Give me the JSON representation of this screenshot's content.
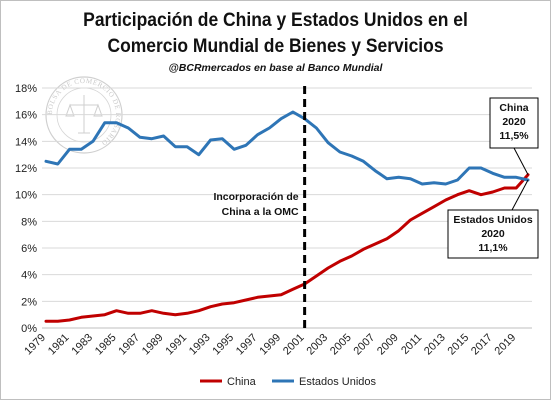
{
  "chart_data": {
    "type": "line",
    "title_lines": [
      "Participación de China y Estados Unidos en el",
      "Comercio Mundial de Bienes y Servicios"
    ],
    "subtitle": "@BCRmercados en base al Banco Mundial",
    "watermark": "BOLSA DE COMERCIO DE ROSARIO",
    "x": [
      1979,
      1980,
      1981,
      1982,
      1983,
      1984,
      1985,
      1986,
      1987,
      1988,
      1989,
      1990,
      1991,
      1992,
      1993,
      1994,
      1995,
      1996,
      1997,
      1998,
      1999,
      2000,
      2001,
      2002,
      2003,
      2004,
      2005,
      2006,
      2007,
      2008,
      2009,
      2010,
      2011,
      2012,
      2013,
      2014,
      2015,
      2016,
      2017,
      2018,
      2019,
      2020
    ],
    "x_tick_labels": [
      "1979",
      "1981",
      "1983",
      "1985",
      "1987",
      "1989",
      "1991",
      "1993",
      "1995",
      "1997",
      "1999",
      "2001",
      "2003",
      "2005",
      "2007",
      "2009",
      "2011",
      "2013",
      "2015",
      "2017",
      "2019"
    ],
    "y_tick_labels": [
      "0%",
      "2%",
      "4%",
      "6%",
      "8%",
      "10%",
      "12%",
      "14%",
      "16%",
      "18%"
    ],
    "ylim": [
      0,
      18
    ],
    "grid": true,
    "legend_position": "bottom",
    "series": [
      {
        "name": "China",
        "color": "#c00000",
        "values": [
          0.5,
          0.5,
          0.6,
          0.8,
          0.9,
          1.0,
          1.3,
          1.1,
          1.1,
          1.3,
          1.1,
          1.0,
          1.1,
          1.3,
          1.6,
          1.8,
          1.9,
          2.1,
          2.3,
          2.4,
          2.5,
          2.9,
          3.3,
          3.9,
          4.5,
          5.0,
          5.4,
          5.9,
          6.3,
          6.7,
          7.3,
          8.1,
          8.6,
          9.1,
          9.6,
          10.0,
          10.3,
          10.0,
          10.2,
          10.5,
          10.5,
          11.5
        ]
      },
      {
        "name": "Estados Unidos",
        "color": "#2e75b6",
        "values": [
          12.5,
          12.3,
          13.4,
          13.4,
          14.0,
          15.4,
          15.4,
          15.0,
          14.3,
          14.2,
          14.4,
          13.6,
          13.6,
          13.0,
          14.1,
          14.2,
          13.4,
          13.7,
          14.5,
          15.0,
          15.7,
          16.2,
          15.7,
          15.0,
          13.9,
          13.2,
          12.9,
          12.5,
          11.8,
          11.2,
          11.3,
          11.2,
          10.8,
          10.9,
          10.8,
          11.1,
          12.0,
          12.0,
          11.6,
          11.3,
          11.3,
          11.1
        ]
      }
    ],
    "event": {
      "x": 2001,
      "label_lines": [
        "Incorporación  de",
        "China  a la OMC"
      ]
    },
    "annotations": {
      "china": [
        "China",
        "2020",
        "11,5%"
      ],
      "usa": [
        "Estados  Unidos",
        "2020",
        "11,1%"
      ]
    }
  }
}
